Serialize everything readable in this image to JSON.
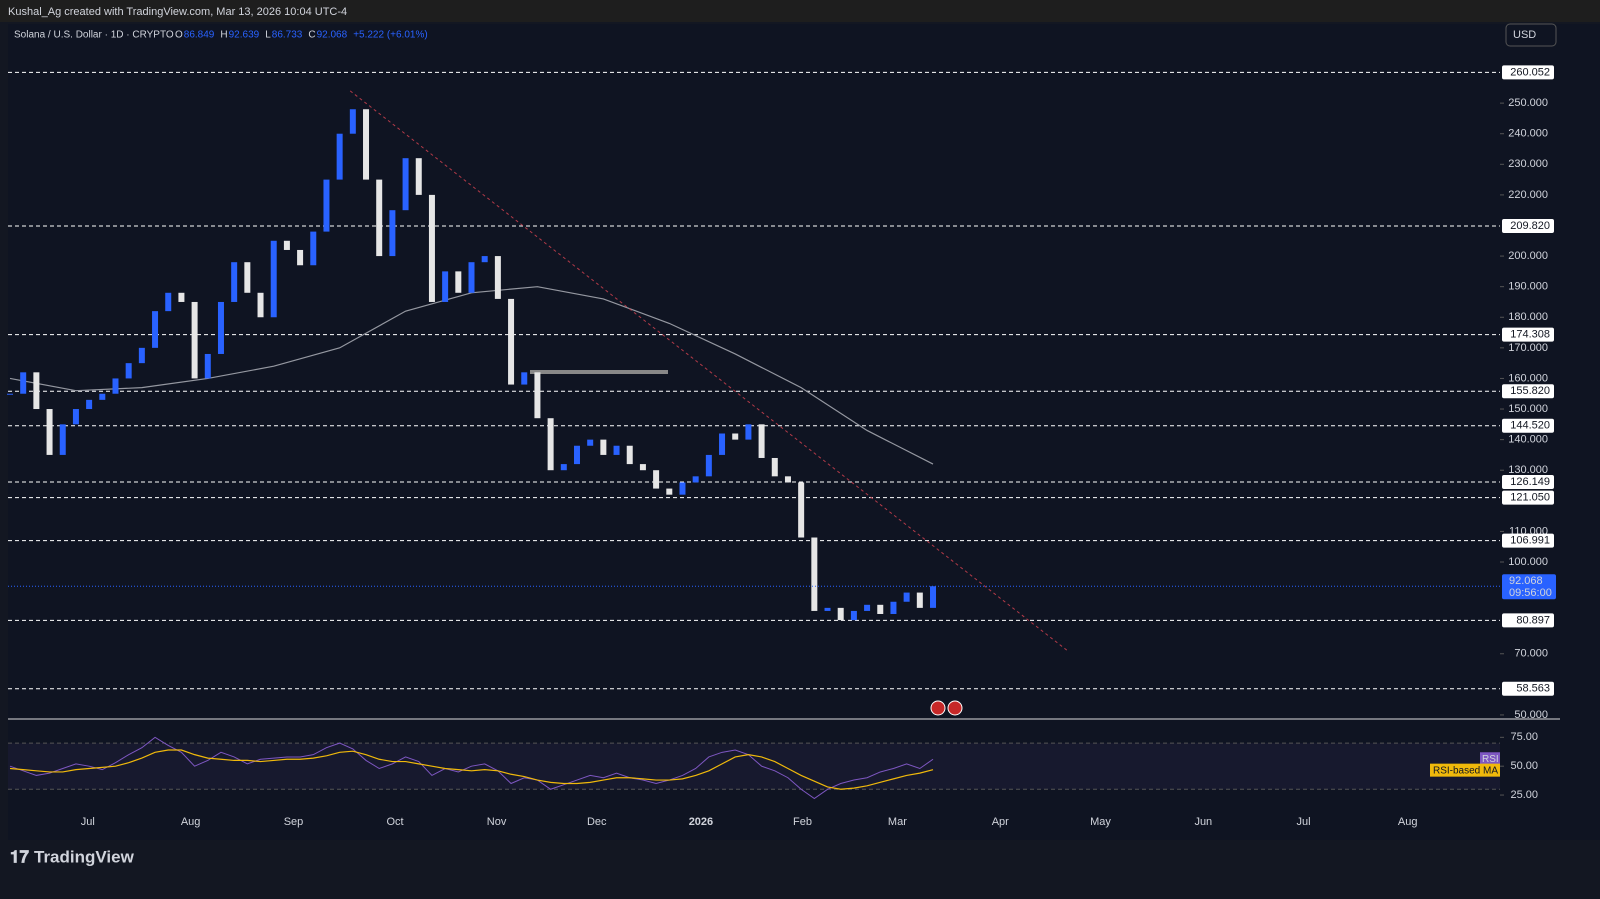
{
  "chart_data": {
    "type": "candlestick",
    "credit": "Kushal_Ag created with TradingView.com, Mar 13, 2026 10:04 UTC-4",
    "symbol": "Solana / U.S. Dollar · 1D · CRYPTO",
    "ohlc": [
      {
        "key": "O",
        "value": "86.849"
      },
      {
        "key": "H",
        "value": "92.639"
      },
      {
        "key": "L",
        "value": "86.733"
      },
      {
        "key": "C",
        "value": "92.068"
      }
    ],
    "change": "+5.222 (+6.01%)",
    "currency": "USD",
    "countdown": "09:56:00",
    "brand": "TradingView",
    "values": [
      155,
      162,
      150,
      135,
      145,
      150,
      153,
      155,
      160,
      165,
      170,
      182,
      188,
      185,
      160,
      168,
      185,
      198,
      188,
      180,
      205,
      202,
      197,
      208,
      225,
      240,
      248,
      225,
      200,
      215,
      232,
      220,
      185,
      195,
      188,
      198,
      200,
      186,
      158,
      162,
      147,
      130,
      132,
      138,
      140,
      135,
      138,
      132,
      130,
      124,
      122,
      126,
      128,
      135,
      142,
      140,
      145,
      134,
      128,
      126,
      108,
      84,
      85,
      81,
      84,
      86,
      83,
      87,
      90,
      85,
      92.068
    ],
    "ma": {
      "x": [
        0,
        5,
        10,
        15,
        20,
        25,
        30,
        35,
        40,
        45,
        50,
        55,
        60,
        65,
        70
      ],
      "values": [
        160,
        156,
        157,
        160,
        164,
        170,
        182,
        188,
        190,
        186,
        178,
        168,
        157,
        143,
        132
      ]
    },
    "trendline": {
      "x": [
        25.8,
        80.2
      ],
      "values": [
        254,
        71
      ]
    },
    "levels": [
      260.052,
      {
        "value": 209.82,
        "label": "209.820"
      },
      174.308,
      {
        "value": 155.82,
        "label": "155.820"
      },
      {
        "value": 144.52,
        "label": "144.520"
      },
      126.149,
      {
        "value": 121.05,
        "label": "121.050"
      },
      106.991,
      80.897,
      58.563
    ],
    "xlim": [
      0,
      113
    ],
    "ylim": [
      49,
      269
    ],
    "yticks": [
      {
        "value": 50,
        "label": "50.000"
      },
      {
        "value": 70,
        "label": "70.000"
      },
      {
        "value": 100,
        "label": "100.000"
      },
      {
        "value": 110,
        "label": "110.000"
      },
      {
        "value": 130,
        "label": "130.000"
      },
      {
        "value": 140,
        "label": "140.000"
      },
      {
        "value": 150,
        "label": "150.000"
      },
      {
        "value": 160,
        "label": "160.000"
      },
      {
        "value": 170,
        "label": "170.000"
      },
      {
        "value": 180,
        "label": "180.000"
      },
      {
        "value": 190,
        "label": "190.000"
      },
      {
        "value": 200,
        "label": "200.000"
      },
      {
        "value": 220,
        "label": "220.000"
      },
      {
        "value": 230,
        "label": "230.000"
      },
      {
        "value": 240,
        "label": "240.000"
      },
      {
        "value": 250,
        "label": "250.000"
      }
    ],
    "xticks": [
      {
        "value": 5.9,
        "label": "Jul"
      },
      {
        "value": 13.7,
        "label": "Aug"
      },
      {
        "value": 21.5,
        "label": "Sep"
      },
      {
        "value": 29.2,
        "label": "Oct"
      },
      {
        "value": 36.9,
        "label": "Nov"
      },
      {
        "value": 44.5,
        "label": "Dec"
      },
      {
        "value": 52.4,
        "label": "2026"
      },
      {
        "value": 60.1,
        "label": "Feb"
      },
      {
        "value": 67.3,
        "label": "Mar"
      },
      {
        "value": 75.1,
        "label": "Apr"
      },
      {
        "value": 82.7,
        "label": "May"
      },
      {
        "value": 90.5,
        "label": "Jun"
      },
      {
        "value": 98.1,
        "label": "Jul"
      },
      {
        "value": 106,
        "label": "Aug"
      }
    ],
    "rsi": {
      "name": "RSI",
      "ma_name": "RSI-based MA",
      "color": "#7e57c2",
      "ma_color": "#f0b90b",
      "ylim": [
        -7,
        90
      ],
      "bands": [
        30,
        70
      ],
      "yticks": [
        {
          "value": 25,
          "label": "25.00"
        },
        {
          "value": 50,
          "label": "50.00"
        },
        {
          "value": 75,
          "label": "75.00"
        }
      ],
      "values": [
        50,
        46,
        42,
        44,
        48,
        52,
        50,
        47,
        53,
        60,
        66,
        75,
        68,
        62,
        50,
        55,
        62,
        58,
        52,
        56,
        57,
        58,
        58,
        60,
        66,
        70,
        65,
        55,
        48,
        52,
        58,
        54,
        42,
        48,
        45,
        50,
        52,
        46,
        35,
        40,
        38,
        30,
        34,
        38,
        42,
        40,
        44,
        40,
        38,
        35,
        38,
        42,
        48,
        58,
        62,
        64,
        60,
        50,
        46,
        40,
        30,
        22,
        30,
        35,
        38,
        40,
        45,
        48,
        52,
        48,
        56
      ],
      "ma_values": [
        48,
        47,
        46,
        45,
        45,
        47,
        48,
        49,
        50,
        53,
        57,
        62,
        64,
        64,
        60,
        57,
        56,
        55,
        55,
        54,
        55,
        56,
        56,
        57,
        59,
        62,
        63,
        60,
        56,
        54,
        54,
        52,
        50,
        48,
        47,
        46,
        47,
        46,
        43,
        41,
        38,
        36,
        35,
        35,
        36,
        38,
        40,
        40,
        39,
        38,
        38,
        39,
        42,
        46,
        52,
        58,
        60,
        58,
        54,
        48,
        42,
        37,
        32,
        30,
        31,
        33,
        36,
        39,
        42,
        44,
        47
      ]
    }
  }
}
